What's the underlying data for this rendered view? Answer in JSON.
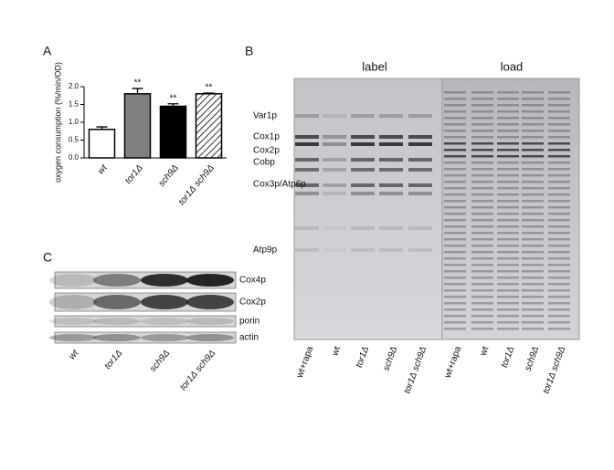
{
  "panel_letters": [
    "A",
    "B",
    "C"
  ],
  "chart_data": {
    "type": "bar",
    "y_label": "oxygen consumption (%/min/OD)",
    "categories": [
      "wt",
      "tor1Δ",
      "sch9Δ",
      "tor1Δ sch9Δ"
    ],
    "values": [
      0.8,
      1.8,
      1.45,
      1.8
    ],
    "errors": [
      0.07,
      0.15,
      0.07,
      0.02
    ],
    "significance": [
      null,
      "**",
      "**",
      "**"
    ],
    "colors": [
      "#ffffff",
      "#808080",
      "#000000",
      "hatch"
    ],
    "ylim": [
      0,
      2
    ],
    "yticks": [
      {
        "value": 0,
        "label": "0.0"
      },
      0.5,
      {
        "value": 1,
        "label": "1.0"
      },
      1.5,
      {
        "value": 2,
        "label": "2.0"
      }
    ]
  },
  "blot": {
    "rows": [
      "Cox4p",
      "Cox2p",
      "porin",
      "actin"
    ],
    "lanes": [
      "wt",
      "tor1Δ",
      "sch9Δ",
      "tor1Δ sch9Δ"
    ]
  },
  "gel": {
    "headers": [
      "label",
      "load"
    ],
    "bands": [
      "Var1p",
      "Cox1p",
      "Cox2p",
      "Cobp",
      "Cox3p/Atp6p",
      "Atp9p"
    ],
    "lanes": [
      "wt+rapa",
      "wt",
      "tor1Δ",
      "sch9Δ",
      "tor1Δ sch9Δ"
    ]
  }
}
